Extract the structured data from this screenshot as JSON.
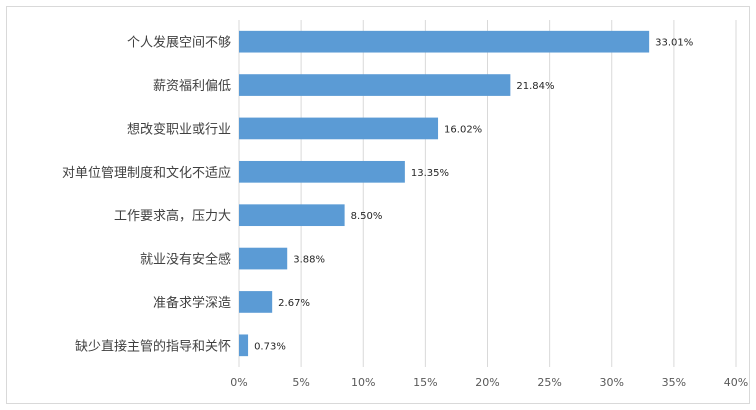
{
  "chart_data": {
    "type": "bar",
    "orientation": "horizontal",
    "categories": [
      "个人发展空间不够",
      "薪资福利偏低",
      "想改变职业或行业",
      "对单位管理制度和文化不适应",
      "工作要求高，压力大",
      "就业没有安全感",
      "准备求学深造",
      "缺少直接主管的指导和关怀"
    ],
    "values": [
      33.01,
      21.84,
      16.02,
      13.35,
      8.5,
      3.88,
      2.67,
      0.73
    ],
    "value_labels": [
      "33.01%",
      "21.84%",
      "16.02%",
      "13.35%",
      "8.50%",
      "3.88%",
      "2.67%",
      "0.73%"
    ],
    "x_ticks": [
      "0%",
      "5%",
      "10%",
      "15%",
      "20%",
      "25%",
      "30%",
      "35%",
      "40%"
    ],
    "xlim": [
      0,
      40
    ],
    "grid": true,
    "legend": "none",
    "bar_color": "#5b9bd5",
    "grid_color": "#d9d9d9"
  }
}
